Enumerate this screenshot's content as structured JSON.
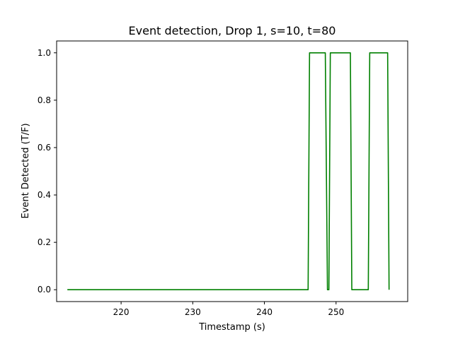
{
  "chart_data": {
    "type": "line",
    "title": "Event detection, Drop 1, s=10, t=80",
    "xlabel": "Timestamp (s)",
    "ylabel": "Event Detected (T/F)",
    "xlim": [
      211,
      260
    ],
    "ylim": [
      -0.05,
      1.05
    ],
    "xticks": [
      220,
      230,
      240,
      250
    ],
    "yticks": [
      0.0,
      0.2,
      0.4,
      0.6,
      0.8,
      1.0
    ],
    "xtick_labels": [
      "220",
      "230",
      "240",
      "250"
    ],
    "ytick_labels": [
      "0.0",
      "0.2",
      "0.4",
      "0.6",
      "0.8",
      "1.0"
    ],
    "grid": false,
    "series": [
      {
        "color": "#008000",
        "x": [
          212.5,
          246.1,
          246.3,
          248.5,
          248.8,
          249.0,
          249.2,
          252.0,
          252.2,
          254.5,
          254.7,
          257.2,
          257.4
        ],
        "y": [
          0,
          0,
          1,
          1,
          0,
          0,
          1,
          1,
          0,
          0,
          1,
          1,
          0
        ]
      }
    ]
  }
}
